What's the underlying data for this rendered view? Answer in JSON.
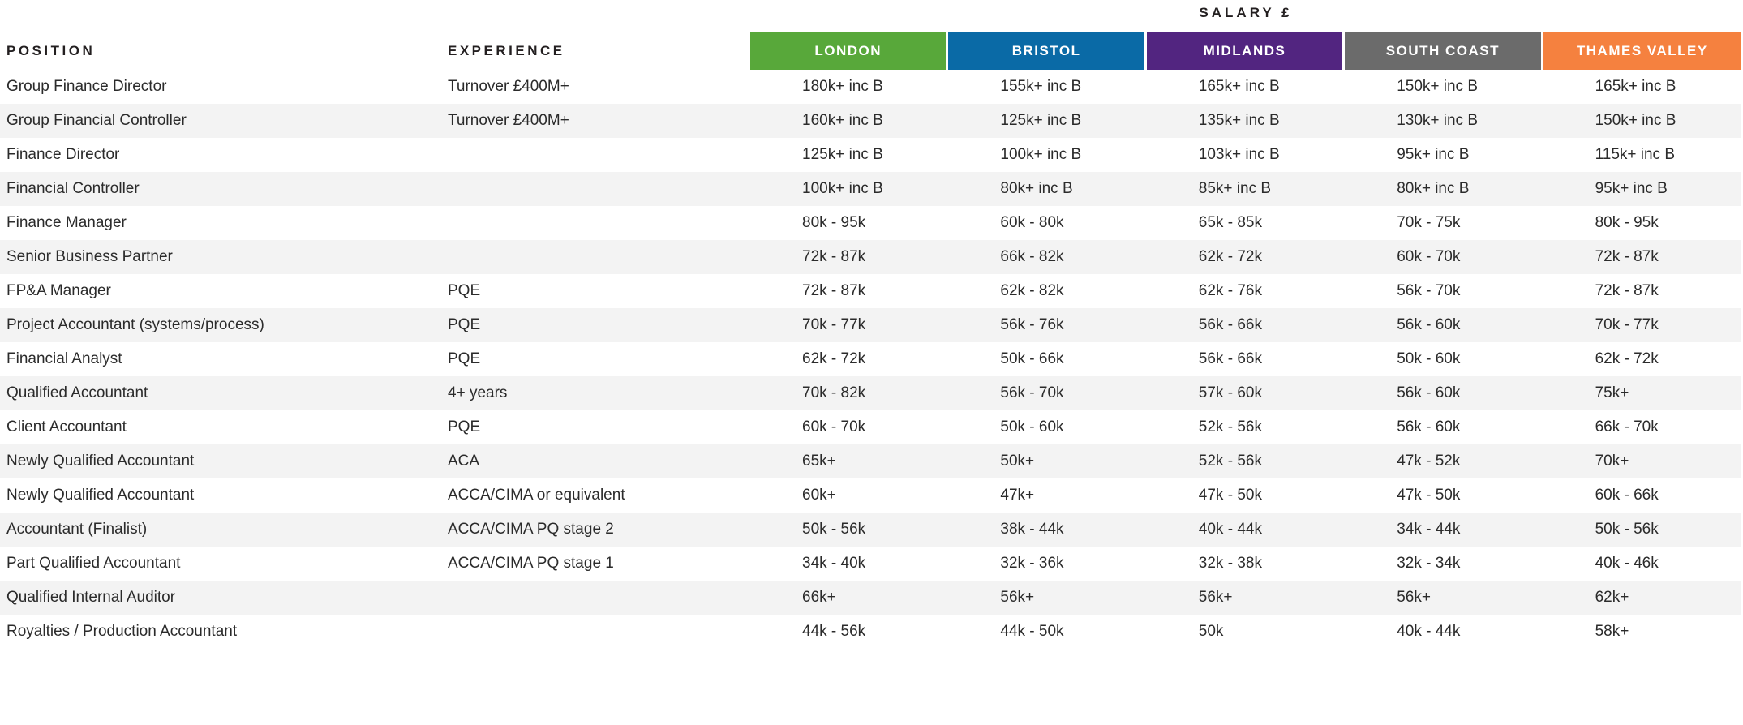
{
  "chart_data": {
    "type": "table",
    "title": "SALARY £",
    "column_headers": {
      "position": "POSITION",
      "experience": "EXPERIENCE",
      "regions": [
        {
          "label": "LONDON",
          "color": "#58A83A"
        },
        {
          "label": "BRISTOL",
          "color": "#0A6AA6"
        },
        {
          "label": "MIDLANDS",
          "color": "#522580"
        },
        {
          "label": "SOUTH COAST",
          "color": "#6B6B6B"
        },
        {
          "label": "THAMES VALLEY",
          "color": "#F5813F"
        }
      ]
    },
    "rows": [
      {
        "position": "Group Finance Director",
        "experience": "Turnover £400M+",
        "salaries": [
          "180k+ inc B",
          "155k+ inc B",
          "165k+ inc B",
          "150k+ inc B",
          "165k+ inc B"
        ]
      },
      {
        "position": "Group Financial Controller",
        "experience": "Turnover £400M+",
        "salaries": [
          "160k+ inc B",
          "125k+ inc B",
          "135k+ inc B",
          "130k+ inc B",
          "150k+ inc B"
        ]
      },
      {
        "position": "Finance Director",
        "experience": "",
        "salaries": [
          "125k+ inc B",
          "100k+ inc B",
          "103k+ inc B",
          "95k+ inc B",
          "115k+ inc B"
        ]
      },
      {
        "position": "Financial Controller",
        "experience": "",
        "salaries": [
          "100k+ inc B",
          "80k+ inc B",
          "85k+ inc B",
          "80k+ inc B",
          "95k+ inc B"
        ]
      },
      {
        "position": "Finance Manager",
        "experience": "",
        "salaries": [
          "80k - 95k",
          "60k - 80k",
          "65k - 85k",
          "70k - 75k",
          "80k - 95k"
        ]
      },
      {
        "position": "Senior Business Partner",
        "experience": "",
        "salaries": [
          "72k - 87k",
          "66k - 82k",
          "62k - 72k",
          "60k - 70k",
          "72k - 87k"
        ]
      },
      {
        "position": "FP&A Manager",
        "experience": "PQE",
        "salaries": [
          "72k - 87k",
          "62k - 82k",
          "62k - 76k",
          "56k - 70k",
          "72k - 87k"
        ]
      },
      {
        "position": "Project Accountant (systems/process)",
        "experience": "PQE",
        "salaries": [
          "70k - 77k",
          "56k - 76k",
          "56k - 66k",
          "56k - 60k",
          "70k - 77k"
        ]
      },
      {
        "position": "Financial Analyst",
        "experience": "PQE",
        "salaries": [
          "62k - 72k",
          "50k - 66k",
          "56k - 66k",
          "50k - 60k",
          "62k - 72k"
        ]
      },
      {
        "position": "Qualified Accountant",
        "experience": "4+ years",
        "salaries": [
          "70k - 82k",
          "56k - 70k",
          "57k - 60k",
          "56k - 60k",
          "75k+"
        ]
      },
      {
        "position": "Client Accountant",
        "experience": "PQE",
        "salaries": [
          "60k - 70k",
          "50k - 60k",
          "52k - 56k",
          "56k - 60k",
          "66k - 70k"
        ]
      },
      {
        "position": "Newly Qualified Accountant",
        "experience": "ACA",
        "salaries": [
          "65k+",
          "50k+",
          "52k - 56k",
          "47k - 52k",
          "70k+"
        ]
      },
      {
        "position": "Newly Qualified Accountant",
        "experience": "ACCA/CIMA or equivalent",
        "salaries": [
          "60k+",
          "47k+",
          "47k - 50k",
          "47k - 50k",
          "60k - 66k"
        ]
      },
      {
        "position": "Accountant (Finalist)",
        "experience": "ACCA/CIMA PQ stage 2",
        "salaries": [
          "50k - 56k",
          "38k - 44k",
          "40k - 44k",
          "34k - 44k",
          "50k - 56k"
        ]
      },
      {
        "position": "Part Qualified Accountant",
        "experience": "ACCA/CIMA PQ stage 1",
        "salaries": [
          "34k - 40k",
          "32k - 36k",
          "32k - 38k",
          "32k - 34k",
          "40k - 46k"
        ]
      },
      {
        "position": "Qualified Internal Auditor",
        "experience": "",
        "salaries": [
          "66k+",
          "56k+",
          "56k+",
          "56k+",
          "62k+"
        ]
      },
      {
        "position": "Royalties / Production Accountant",
        "experience": "",
        "salaries": [
          "44k - 56k",
          "44k - 50k",
          "50k",
          "40k - 44k",
          "58k+"
        ]
      }
    ],
    "layout": {
      "stripe_color": "#F3F3F3",
      "text_color": "#2b2b2b",
      "header_text_color": "#231F20",
      "region_label_color": "#FFFFFF",
      "background": "#FFFFFF",
      "striped_rows": "even"
    }
  }
}
